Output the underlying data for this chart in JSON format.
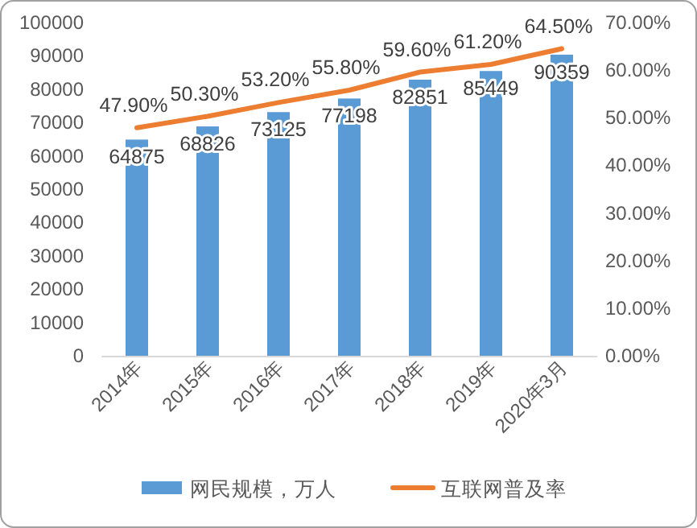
{
  "chart_data": {
    "type": "bar",
    "categories": [
      "2014年",
      "2015年",
      "2016年",
      "2017年",
      "2018年",
      "2019年",
      "2020年3月"
    ],
    "series": [
      {
        "name": "网民规模，万人",
        "color": "#5b9bd5",
        "values": [
          64875,
          68826,
          73125,
          77198,
          82851,
          85449,
          90359
        ],
        "value_labels": [
          "64875",
          "68826",
          "73125",
          "77198",
          "82851",
          "85449",
          "90359"
        ]
      },
      {
        "name": "互联网普及率",
        "type": "line",
        "axis": "y2",
        "color": "#ed7d31",
        "values": [
          47.9,
          50.3,
          53.2,
          55.8,
          59.6,
          61.2,
          64.5
        ],
        "value_labels": [
          "47.90%",
          "50.30%",
          "53.20%",
          "55.80%",
          "59.60%",
          "61.20%",
          "64.50%"
        ]
      }
    ],
    "ylim": [
      0,
      100000
    ],
    "yticks": [
      0,
      10000,
      20000,
      30000,
      40000,
      50000,
      60000,
      70000,
      80000,
      90000,
      100000
    ],
    "y2lim": [
      0,
      70
    ],
    "y2ticks": [
      {
        "value": 0,
        "label": "0.00%"
      },
      {
        "value": 10,
        "label": "10.00%"
      },
      {
        "value": 20,
        "label": "20.00%"
      },
      {
        "value": 30,
        "label": "30.00%"
      },
      {
        "value": 40,
        "label": "40.00%"
      },
      {
        "value": 50,
        "label": "50.00%"
      },
      {
        "value": 60,
        "label": "60.00%"
      },
      {
        "value": 70,
        "label": "70.00%"
      }
    ],
    "grid": false,
    "legend": "bottom",
    "marker": "none",
    "line_style": "solid"
  }
}
